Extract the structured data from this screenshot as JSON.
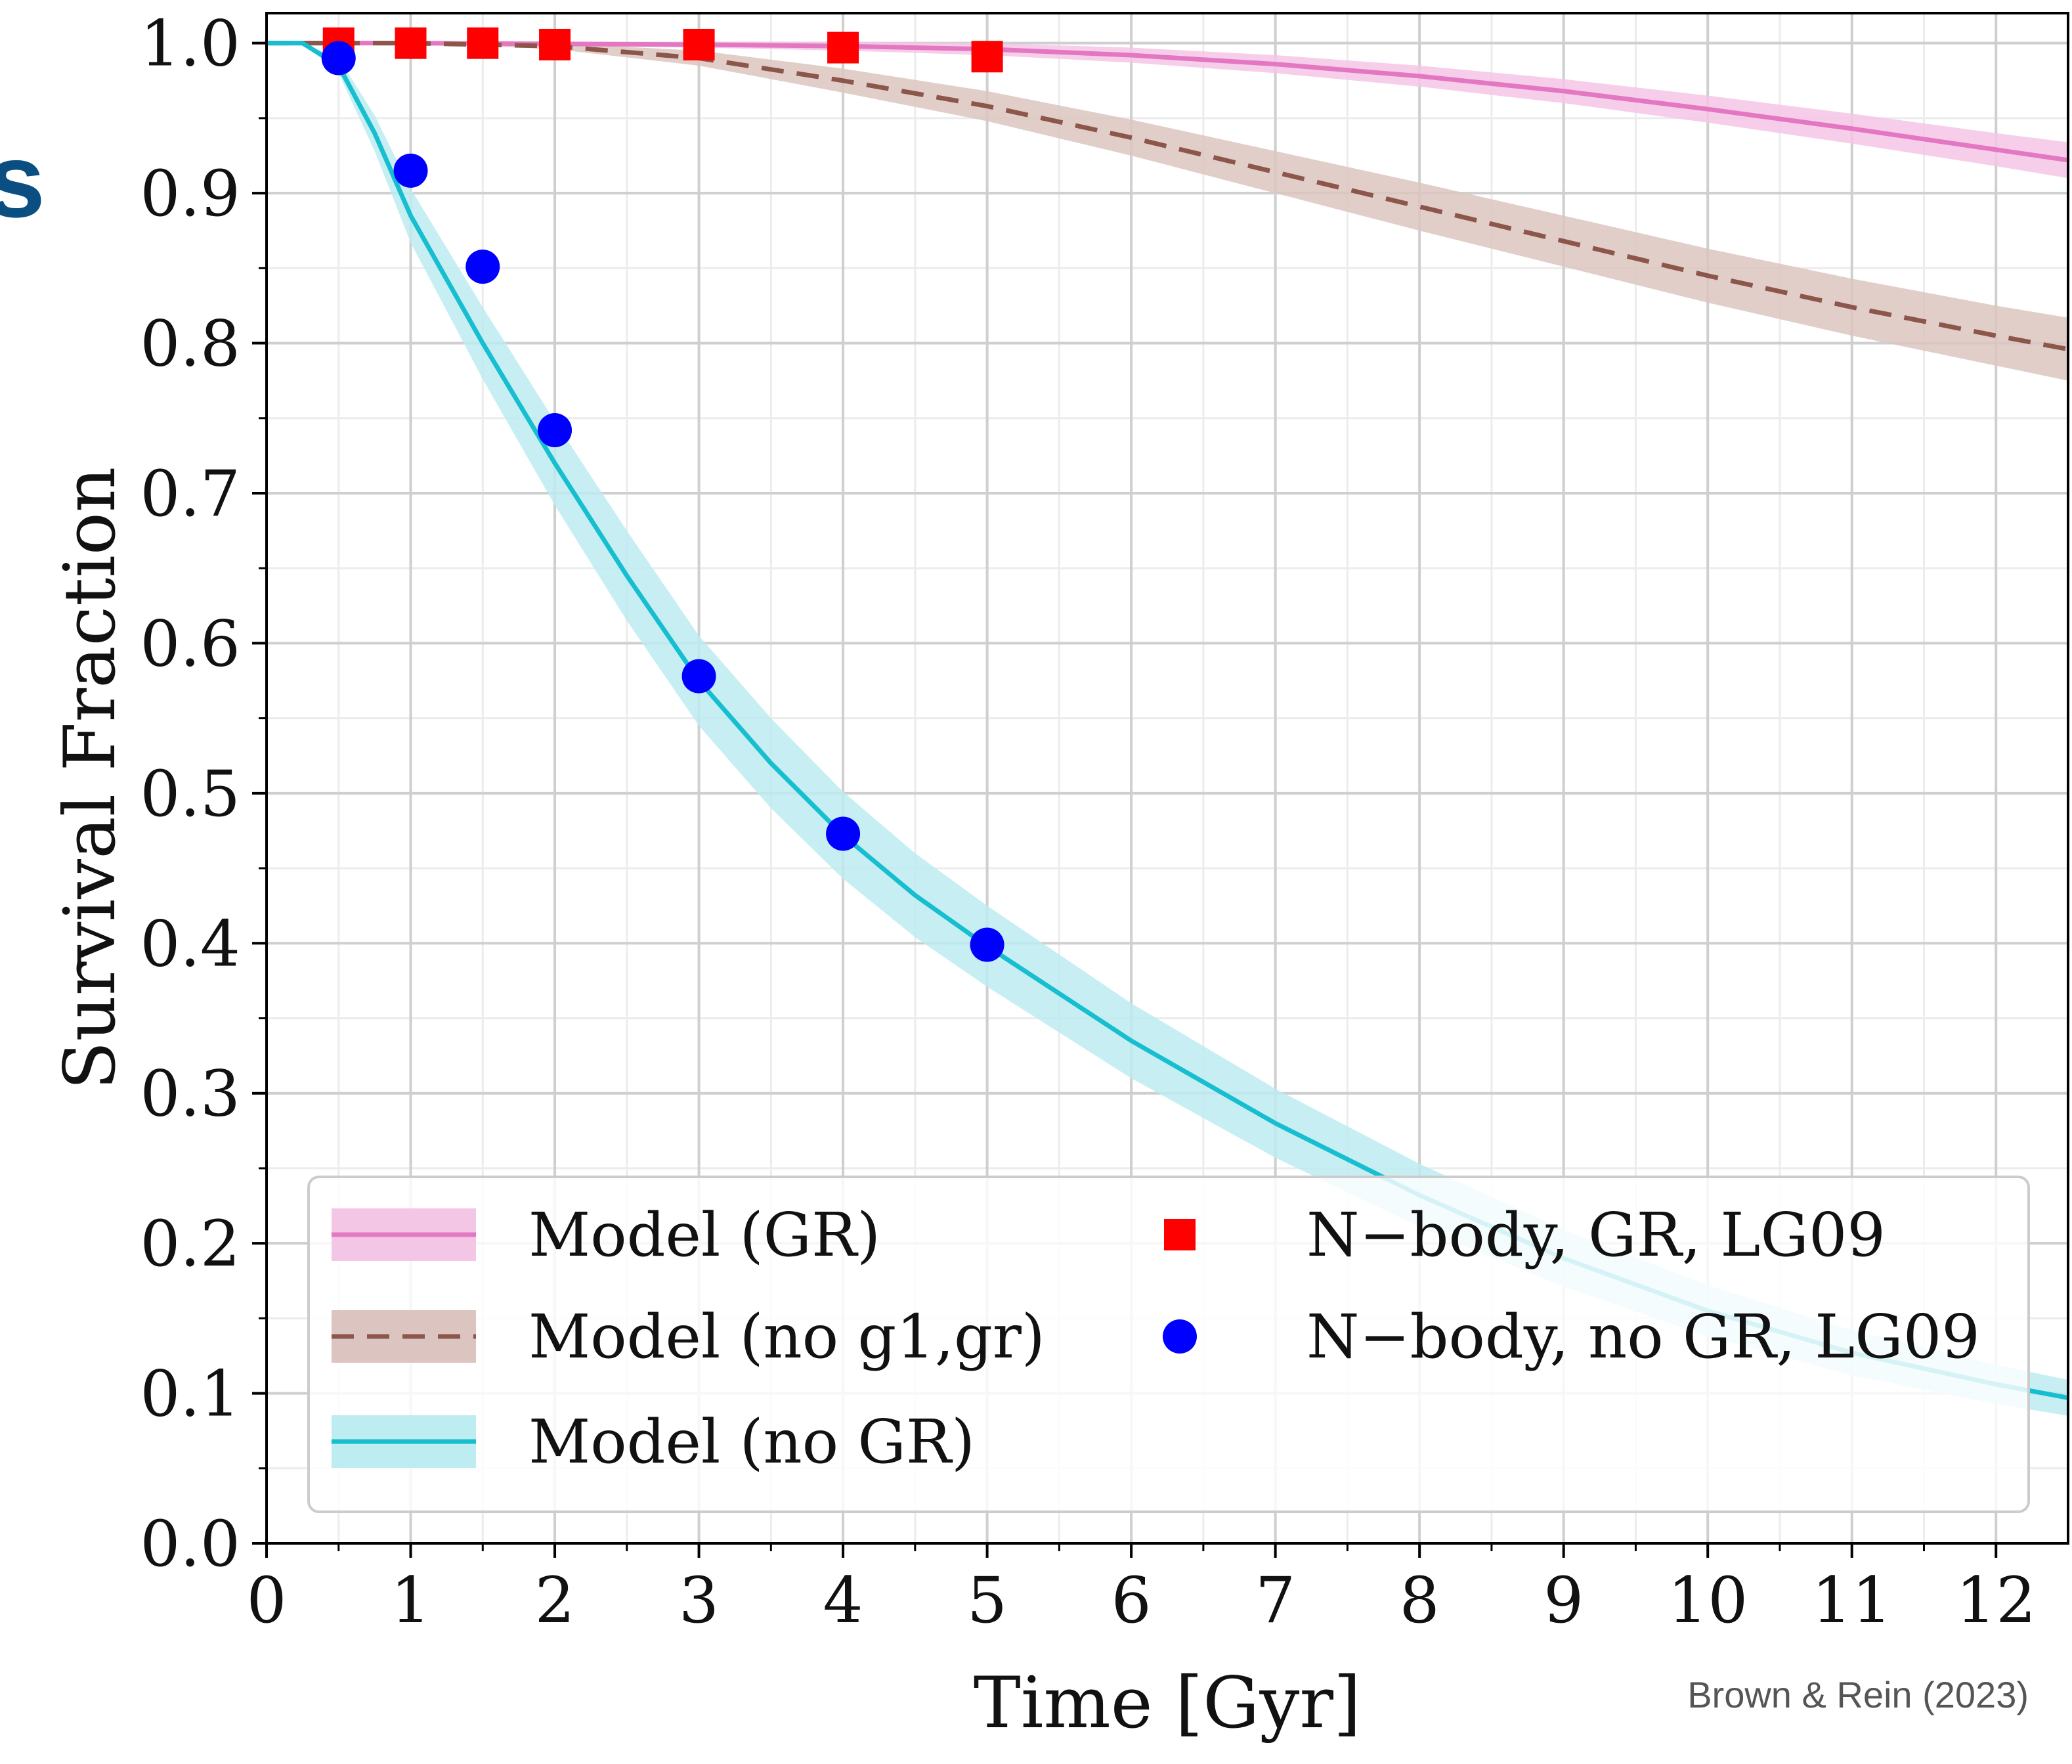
{
  "chart_data": {
    "type": "line",
    "title": "",
    "xlabel": "Time [Gyr]",
    "ylabel": "Survival Fraction",
    "xlim": [
      0,
      12.5
    ],
    "ylim": [
      0,
      1.02
    ],
    "x_ticks": [
      "0",
      "1",
      "2",
      "3",
      "4",
      "5",
      "6",
      "7",
      "8",
      "9",
      "10",
      "11",
      "12"
    ],
    "y_ticks": [
      "0.0",
      "0.1",
      "0.2",
      "0.3",
      "0.4",
      "0.5",
      "0.6",
      "0.7",
      "0.8",
      "0.9",
      "1.0"
    ],
    "grid": true,
    "legend_position": "lower-center",
    "series": [
      {
        "name": "Model (GR)",
        "kind": "line",
        "style": "solid",
        "color": "#e377c2",
        "band_color": "#f4c6e6",
        "x": [
          0,
          0.5,
          1,
          2,
          3,
          4,
          5,
          6,
          7,
          8,
          9,
          10,
          11,
          12,
          12.5
        ],
        "y": [
          1.0,
          1.0,
          1.0,
          0.9995,
          0.999,
          0.998,
          0.996,
          0.992,
          0.986,
          0.978,
          0.968,
          0.956,
          0.943,
          0.929,
          0.922
        ],
        "band_halfwidth": [
          0,
          0,
          0,
          0.001,
          0.002,
          0.003,
          0.004,
          0.005,
          0.006,
          0.007,
          0.008,
          0.009,
          0.01,
          0.011,
          0.012
        ]
      },
      {
        "name": "Model (no g1,gr)",
        "kind": "line",
        "style": "dashed",
        "color": "#8c564b",
        "band_color": "#dcc5c0",
        "x": [
          0,
          0.5,
          1,
          2,
          3,
          4,
          5,
          6,
          7,
          8,
          9,
          10,
          11,
          12,
          12.5
        ],
        "y": [
          1.0,
          1.0,
          1.0,
          0.998,
          0.99,
          0.975,
          0.958,
          0.937,
          0.914,
          0.891,
          0.868,
          0.845,
          0.824,
          0.805,
          0.796
        ],
        "band_halfwidth": [
          0,
          0,
          0,
          0.002,
          0.005,
          0.008,
          0.01,
          0.012,
          0.014,
          0.016,
          0.017,
          0.018,
          0.019,
          0.02,
          0.021
        ]
      },
      {
        "name": "Model (no GR)",
        "kind": "line",
        "style": "solid",
        "color": "#17becf",
        "band_color": "#bdecf1",
        "x": [
          0,
          0.25,
          0.5,
          0.75,
          1,
          1.5,
          2,
          2.5,
          3,
          3.5,
          4,
          4.5,
          5,
          6,
          7,
          8,
          9,
          10,
          11,
          12,
          12.5
        ],
        "y": [
          1.0,
          1.0,
          0.985,
          0.94,
          0.885,
          0.8,
          0.72,
          0.645,
          0.575,
          0.52,
          0.472,
          0.432,
          0.398,
          0.335,
          0.28,
          0.232,
          0.19,
          0.155,
          0.127,
          0.106,
          0.097
        ],
        "band_halfwidth": [
          0,
          0,
          0.005,
          0.012,
          0.018,
          0.024,
          0.028,
          0.03,
          0.03,
          0.03,
          0.029,
          0.028,
          0.027,
          0.025,
          0.023,
          0.021,
          0.019,
          0.017,
          0.015,
          0.013,
          0.012
        ]
      },
      {
        "name": "N−body, GR, LG09",
        "kind": "scatter",
        "marker": "square",
        "color": "#ff0000",
        "x": [
          0.5,
          1,
          1.5,
          2,
          3,
          4,
          5
        ],
        "y": [
          1.0,
          1.0,
          1.0,
          0.999,
          0.999,
          0.997,
          0.991
        ]
      },
      {
        "name": "N−body, no GR, LG09",
        "kind": "scatter",
        "marker": "circle",
        "color": "#0000ff",
        "x": [
          0.5,
          1,
          1.5,
          2,
          3,
          4,
          5
        ],
        "y": [
          0.99,
          0.915,
          0.851,
          0.742,
          0.578,
          0.473,
          0.399
        ]
      }
    ],
    "credit": "Brown & Rein (2023)",
    "edge_glyph": "s"
  }
}
